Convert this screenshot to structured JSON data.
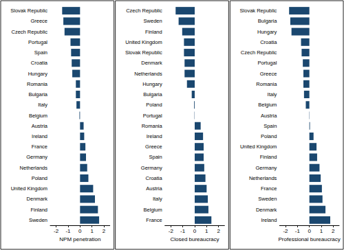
{
  "chart_data": [
    {
      "type": "bar",
      "orientation": "horizontal",
      "xlabel": "NPM penetration",
      "color": "#1a476f",
      "grid": false,
      "categories": [
        "Slovak Republic",
        "Greece",
        "Czech Republic",
        "Portugal",
        "Spain",
        "Croatia",
        "Hungary",
        "Romania",
        "Bulgaria",
        "Italy",
        "Belgium",
        "Austria",
        "Ireland",
        "France",
        "Germany",
        "Netherlands",
        "Poland",
        "United Kingdom",
        "Denmark",
        "Finland",
        "Sweden"
      ],
      "values": [
        -1.5,
        -1.4,
        -1.3,
        -0.8,
        -0.75,
        -0.7,
        -0.65,
        -0.35,
        -0.35,
        -0.3,
        -0.05,
        0.3,
        0.35,
        0.45,
        0.5,
        0.6,
        0.7,
        1.1,
        1.25,
        1.5,
        1.6
      ],
      "xlim": [
        -2.5,
        2.5
      ],
      "xticks": [
        -2,
        -1,
        0,
        1,
        2
      ]
    },
    {
      "type": "bar",
      "orientation": "horizontal",
      "xlabel": "Closed bureaucracy",
      "color": "#1a476f",
      "grid": false,
      "categories": [
        "Czech Republic",
        "Sweden",
        "Finland",
        "United Kingdom",
        "Slovak Republic",
        "Denmark",
        "Netherlands",
        "Hungary",
        "Bulgaria",
        "Poland",
        "Portugal",
        "Romania",
        "Ireland",
        "Greece",
        "Spain",
        "Germany",
        "Croatia",
        "Austria",
        "Italy",
        "Belgium",
        "France"
      ],
      "values": [
        -1.6,
        -1.35,
        -1.05,
        -0.9,
        -0.9,
        -0.85,
        -0.85,
        -0.65,
        -0.25,
        -0.05,
        -0.02,
        0.5,
        0.7,
        0.75,
        0.75,
        0.8,
        0.9,
        1.0,
        1.1,
        1.15,
        1.4
      ],
      "xlim": [
        -2.5,
        2.5
      ],
      "xticks": [
        -2,
        -1,
        0,
        1,
        2
      ]
    },
    {
      "type": "bar",
      "orientation": "horizontal",
      "xlabel": "Professional bureaucracy",
      "color": "#1a476f",
      "grid": false,
      "categories": [
        "Slovak Republic",
        "Bulgaria",
        "Hungary",
        "Croatia",
        "Czech Republic",
        "Portugal",
        "Greece",
        "Romania",
        "Italy",
        "Belgium",
        "Austria",
        "Spain",
        "Poland",
        "United Kingdom",
        "Finland",
        "Germany",
        "Netherlands",
        "France",
        "Sweden",
        "Denmark",
        "Ireland"
      ],
      "values": [
        -1.7,
        -1.6,
        -1.5,
        -0.7,
        -0.65,
        -0.55,
        -0.5,
        -0.5,
        -0.45,
        -0.3,
        -0.02,
        0.05,
        0.35,
        0.6,
        0.65,
        0.85,
        0.95,
        1.05,
        1.1,
        1.35,
        1.75
      ],
      "xlim": [
        -2.5,
        2.5
      ],
      "xticks": [
        -2,
        -1,
        0,
        1,
        2
      ]
    }
  ]
}
